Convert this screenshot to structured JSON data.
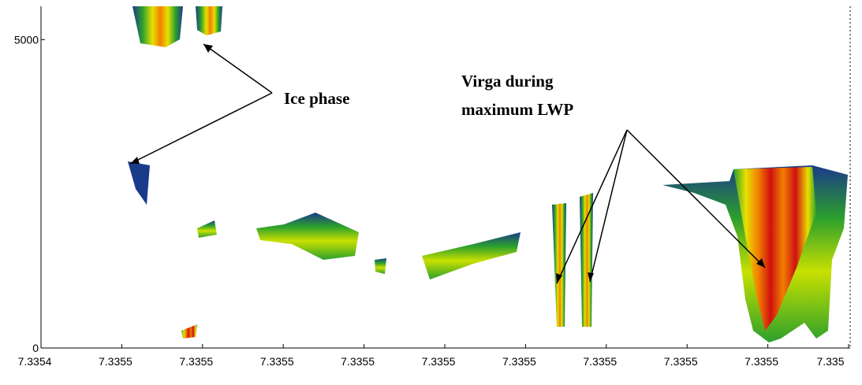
{
  "chart_data": {
    "type": "time-height",
    "ylim": [
      0,
      5540
    ],
    "yticks": [
      0,
      5000
    ],
    "xtick_labels": [
      "7.3354",
      "7.3355",
      "7.3355",
      "7.3355",
      "7.3355",
      "7.3355",
      "7.3355",
      "7.3355",
      "7.3355",
      "7.3355",
      "7.335"
    ],
    "annotations": {
      "ice": "Ice phase",
      "virga_line1": "Virga during",
      "virga_line2": "maximum LWP"
    }
  }
}
